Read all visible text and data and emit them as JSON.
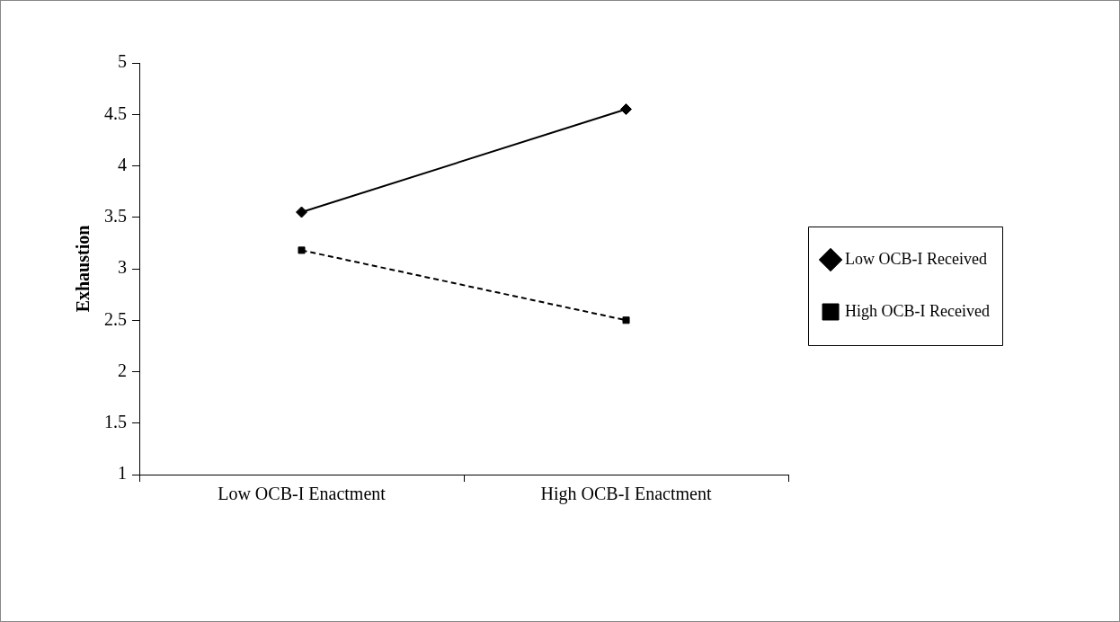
{
  "chart_data": {
    "type": "line",
    "ylabel": "Exhaustion",
    "categories": [
      "Low OCB-I Enactment",
      "High OCB-I Enactment"
    ],
    "series": [
      {
        "name": "Low OCB-I Received",
        "color": "#000000",
        "values": [
          3.55,
          4.55
        ],
        "marker": "diamond",
        "line_style": "solid"
      },
      {
        "name": "High OCB-I Received",
        "color": "#000000",
        "values": [
          3.18,
          2.5
        ],
        "marker": "square",
        "line_style": "dashed"
      }
    ],
    "ylim": [
      1,
      5
    ],
    "yticks": [
      1,
      1.5,
      2,
      2.5,
      3,
      3.5,
      4,
      4.5,
      5
    ],
    "grid": false,
    "legend": "right"
  }
}
